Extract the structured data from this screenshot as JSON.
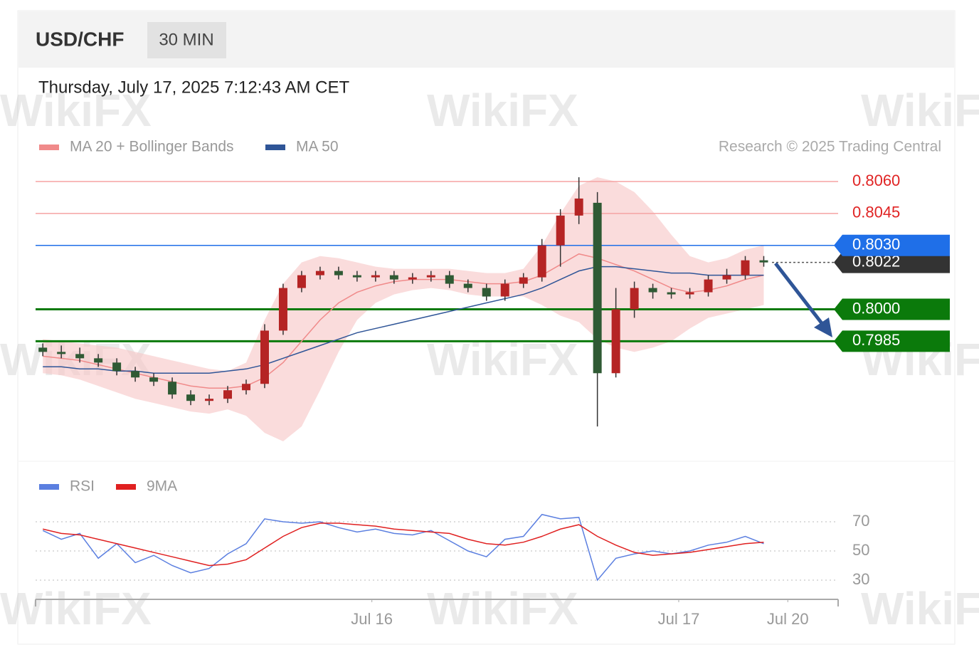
{
  "header": {
    "symbol": "USD/CHF",
    "timeframe": "30 MIN",
    "timestamp": "Thursday, July 17, 2025 7:12:43 AM CET",
    "credit": "Research © 2025 Trading Central",
    "watermark": "WikiFX"
  },
  "chart_data": [
    {
      "type": "candlestick",
      "xlim": [
        -0.2,
        43.1
      ],
      "ylim": [
        0.7932,
        0.8065
      ],
      "up_color": "#b52424",
      "down_color": "#2f5a34",
      "open": [
        0.7982,
        0.798,
        0.7979,
        0.7977,
        0.7975,
        0.7971,
        0.7968,
        0.7966,
        0.796,
        0.7957,
        0.7958,
        0.7962,
        0.7965,
        0.799,
        0.801,
        0.8016,
        0.8018,
        0.8016,
        0.8015,
        0.8016,
        0.8014,
        0.8015,
        0.8016,
        0.8012,
        0.801,
        0.8006,
        0.8012,
        0.8015,
        0.803,
        0.8044,
        0.805,
        0.797,
        0.8,
        0.801,
        0.8008,
        0.8007,
        0.8008,
        0.8014,
        0.8016,
        0.8023
      ],
      "high": [
        0.7984,
        0.7983,
        0.7982,
        0.7979,
        0.7977,
        0.7973,
        0.797,
        0.7968,
        0.7962,
        0.796,
        0.7964,
        0.7967,
        0.7993,
        0.8012,
        0.8018,
        0.802,
        0.802,
        0.8018,
        0.8018,
        0.8018,
        0.8017,
        0.8018,
        0.8018,
        0.8014,
        0.8012,
        0.8014,
        0.8017,
        0.8033,
        0.8047,
        0.8062,
        0.8055,
        0.801,
        0.8013,
        0.8012,
        0.801,
        0.801,
        0.8016,
        0.8019,
        0.8025,
        0.8025
      ],
      "low": [
        0.7978,
        0.7977,
        0.7975,
        0.7973,
        0.7969,
        0.7966,
        0.7964,
        0.7958,
        0.7955,
        0.7955,
        0.7956,
        0.796,
        0.7963,
        0.7988,
        0.8008,
        0.8014,
        0.8014,
        0.8013,
        0.8013,
        0.8012,
        0.8012,
        0.8013,
        0.801,
        0.8008,
        0.8004,
        0.8004,
        0.801,
        0.8013,
        0.802,
        0.804,
        0.7945,
        0.7968,
        0.7996,
        0.8005,
        0.8005,
        0.8005,
        0.8006,
        0.8012,
        0.8014,
        0.802
      ],
      "close": [
        0.798,
        0.7979,
        0.7977,
        0.7975,
        0.7971,
        0.7968,
        0.7966,
        0.796,
        0.7957,
        0.7958,
        0.7962,
        0.7965,
        0.799,
        0.801,
        0.8016,
        0.8018,
        0.8016,
        0.8015,
        0.8016,
        0.8014,
        0.8015,
        0.8016,
        0.8012,
        0.801,
        0.8006,
        0.8012,
        0.8015,
        0.803,
        0.8044,
        0.8052,
        0.797,
        0.8,
        0.801,
        0.8008,
        0.8007,
        0.8008,
        0.8014,
        0.8016,
        0.8023,
        0.8022
      ],
      "band": {
        "color": "#f7c5c5",
        "upper": [
          0.7986,
          0.7985,
          0.7984,
          0.7983,
          0.7982,
          0.798,
          0.7978,
          0.7976,
          0.7974,
          0.7972,
          0.7971,
          0.7975,
          0.7995,
          0.8012,
          0.8022,
          0.8025,
          0.8024,
          0.8022,
          0.802,
          0.8019,
          0.8019,
          0.8019,
          0.8019,
          0.8018,
          0.8017,
          0.8017,
          0.8019,
          0.803,
          0.8045,
          0.8058,
          0.8062,
          0.806,
          0.8055,
          0.8046,
          0.8035,
          0.8025,
          0.8022,
          0.8024,
          0.8028,
          0.803
        ],
        "lower": [
          0.797,
          0.7969,
          0.7967,
          0.7964,
          0.7961,
          0.7958,
          0.7956,
          0.7954,
          0.7952,
          0.7951,
          0.7953,
          0.795,
          0.7942,
          0.7938,
          0.7945,
          0.7962,
          0.798,
          0.7995,
          0.8003,
          0.8007,
          0.8009,
          0.801,
          0.8009,
          0.8007,
          0.8006,
          0.8006,
          0.8006,
          0.8002,
          0.7997,
          0.7994,
          0.7986,
          0.7982,
          0.798,
          0.7982,
          0.7985,
          0.7991,
          0.7996,
          0.7998,
          0.8,
          0.8002
        ]
      },
      "series": [
        {
          "name": "MA 20 + Bollinger Bands",
          "color": "#f08a8a",
          "values": [
            0.7978,
            0.7977,
            0.7976,
            0.7974,
            0.7972,
            0.797,
            0.7968,
            0.7966,
            0.7964,
            0.7963,
            0.7963,
            0.7964,
            0.7968,
            0.7975,
            0.7985,
            0.7995,
            0.8003,
            0.8008,
            0.8011,
            0.8013,
            0.8014,
            0.8014,
            0.8014,
            0.8013,
            0.8012,
            0.8012,
            0.8013,
            0.8016,
            0.8021,
            0.8026,
            0.8024,
            0.8021,
            0.8018,
            0.8014,
            0.801,
            0.8008,
            0.8009,
            0.8011,
            0.8014,
            0.8016
          ]
        },
        {
          "name": "MA 50",
          "color": "#2f5597",
          "values": [
            0.7973,
            0.7973,
            0.7972,
            0.7972,
            0.7971,
            0.7971,
            0.797,
            0.797,
            0.797,
            0.797,
            0.7971,
            0.7972,
            0.7974,
            0.7977,
            0.798,
            0.7983,
            0.7986,
            0.7989,
            0.7991,
            0.7993,
            0.7995,
            0.7997,
            0.7999,
            0.8001,
            0.8003,
            0.8005,
            0.8007,
            0.801,
            0.8014,
            0.8018,
            0.802,
            0.802,
            0.8019,
            0.8018,
            0.8017,
            0.8017,
            0.8016,
            0.8016,
            0.8016,
            0.8016
          ]
        }
      ],
      "levels": [
        {
          "value": 0.806,
          "label": "0.8060",
          "color": "#f5a3a3",
          "text_color": "#e02424",
          "box": false,
          "dashed": false
        },
        {
          "value": 0.8045,
          "label": "0.8045",
          "color": "#f5a3a3",
          "text_color": "#e02424",
          "box": false,
          "dashed": false
        },
        {
          "value": 0.8022,
          "label": "0.8022",
          "color": "#333333",
          "text_color": "#ffffff",
          "box": true,
          "dashed": true
        },
        {
          "value": 0.803,
          "label": "0.8030",
          "color": "#1f6fe8",
          "text_color": "#ffffff",
          "box": true,
          "dashed": false
        },
        {
          "value": 0.8,
          "label": "0.8000",
          "color": "#0b7a0b",
          "text_color": "#ffffff",
          "box": true,
          "dashed": false
        },
        {
          "value": 0.7985,
          "label": "0.7985",
          "color": "#0b7a0b",
          "text_color": "#ffffff",
          "box": true,
          "dashed": false
        }
      ]
    },
    {
      "type": "line",
      "xlim": [
        -0.2,
        43.1
      ],
      "xticks": [
        {
          "value": 17.8,
          "label": "Jul 16"
        },
        {
          "value": 34.4,
          "label": "Jul 17"
        },
        {
          "value": 40.3,
          "label": "Jul 20"
        }
      ],
      "ylim": [
        23,
        84
      ],
      "yticks": [
        70,
        50,
        30
      ],
      "grid": true,
      "series": [
        {
          "name": "RSI",
          "color": "#5b7fe0",
          "values": [
            64,
            58,
            62,
            45,
            55,
            42,
            47,
            40,
            35,
            38,
            48,
            55,
            72,
            70,
            69,
            70,
            66,
            63,
            65,
            62,
            61,
            64,
            57,
            50,
            46,
            58,
            60,
            75,
            72,
            73,
            30,
            45,
            48,
            50,
            48,
            50,
            54,
            56,
            60,
            55
          ]
        },
        {
          "name": "9MA",
          "color": "#e02020",
          "values": [
            65,
            62,
            61,
            58,
            55,
            52,
            49,
            46,
            43,
            40,
            41,
            44,
            52,
            60,
            66,
            69,
            69,
            68,
            67,
            65,
            64,
            63,
            62,
            58,
            55,
            54,
            56,
            60,
            65,
            68,
            60,
            54,
            49,
            47,
            48,
            49,
            51,
            53,
            55,
            56
          ]
        }
      ]
    }
  ]
}
